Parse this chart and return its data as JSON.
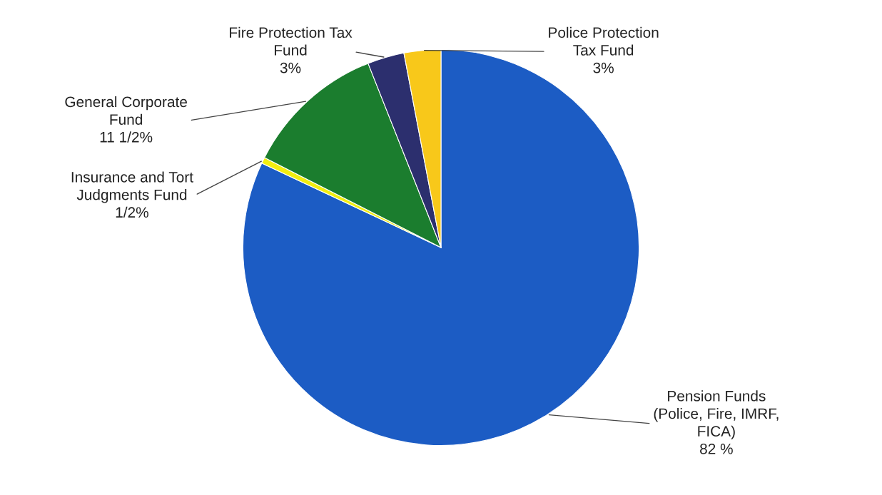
{
  "chart_data": {
    "type": "pie",
    "categories": [
      "Pension Funds\n(Police, Fire, IMRF,\nFICA)",
      "Insurance and Tort\nJudgments Fund",
      "General Corporate\nFund",
      "Fire Protection Tax\nFund",
      "Police Protection\nTax Fund"
    ],
    "values": [
      82,
      0.5,
      11.5,
      3,
      3
    ],
    "value_labels": [
      "82 %",
      "1/2%",
      "11 1/2%",
      "3%",
      "3%"
    ],
    "colors": [
      "#1c5cc4",
      "#f2ee10",
      "#1b7d2e",
      "#2c2f6e",
      "#f8c81a"
    ],
    "legend": false
  }
}
